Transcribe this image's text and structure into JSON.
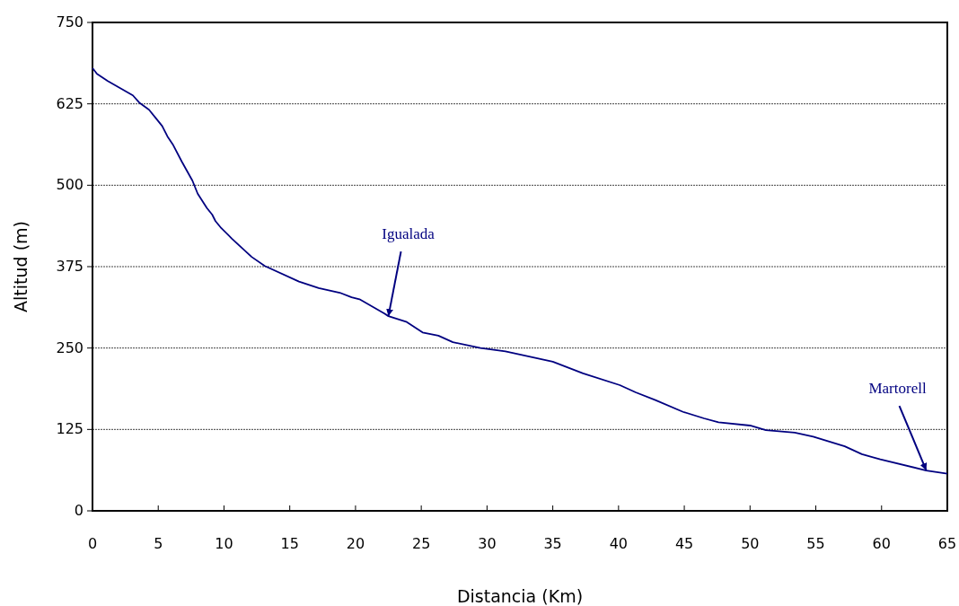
{
  "chart_data": {
    "type": "line",
    "xlabel": "Distancia (Km)",
    "ylabel": "Altitud (m)",
    "xlim": [
      0,
      65
    ],
    "xticks": [
      0,
      5,
      10,
      15,
      20,
      25,
      30,
      35,
      40,
      45,
      50,
      55,
      60,
      65
    ],
    "ylim": [
      0,
      750
    ],
    "yticks": [
      0,
      125,
      250,
      375,
      500,
      625,
      750
    ],
    "grid": "y",
    "marker": "none",
    "line_style": "solid",
    "series": [
      {
        "color": "#000080",
        "x": [
          0,
          0.34,
          1.16,
          3.07,
          3.55,
          4.3,
          4.9,
          5.3,
          5.7,
          6.1,
          6.8,
          7.6,
          8.0,
          8.7,
          9.1,
          9.35,
          9.8,
          10.6,
          12.1,
          13.1,
          15.7,
          17.2,
          18.8,
          19.7,
          20.3,
          22.2,
          22.5,
          23.9,
          25.1,
          26.3,
          27.4,
          29.5,
          31.4,
          35.0,
          37.3,
          40.1,
          41.3,
          42.8,
          44.9,
          46.5,
          47.6,
          50.0,
          51.2,
          53.4,
          54.8,
          57.2,
          58.5,
          59.9,
          63.4,
          65
        ],
        "values": [
          680,
          671,
          660,
          638,
          627,
          616,
          601,
          591,
          575,
          563,
          536,
          507,
          487,
          465,
          455,
          445,
          434,
          418,
          390,
          376,
          352,
          342,
          335,
          328,
          325,
          303,
          299,
          290,
          274,
          269,
          259,
          250,
          245,
          229,
          211,
          193,
          182,
          170,
          152,
          142,
          136,
          131,
          124,
          120,
          114,
          99,
          87,
          79,
          62,
          57
        ]
      }
    ],
    "annotations": [
      {
        "text": "Igualada",
        "x": 22.5,
        "y": 299
      },
      {
        "text": "Martorell",
        "x": 63.4,
        "y": 62
      }
    ]
  }
}
